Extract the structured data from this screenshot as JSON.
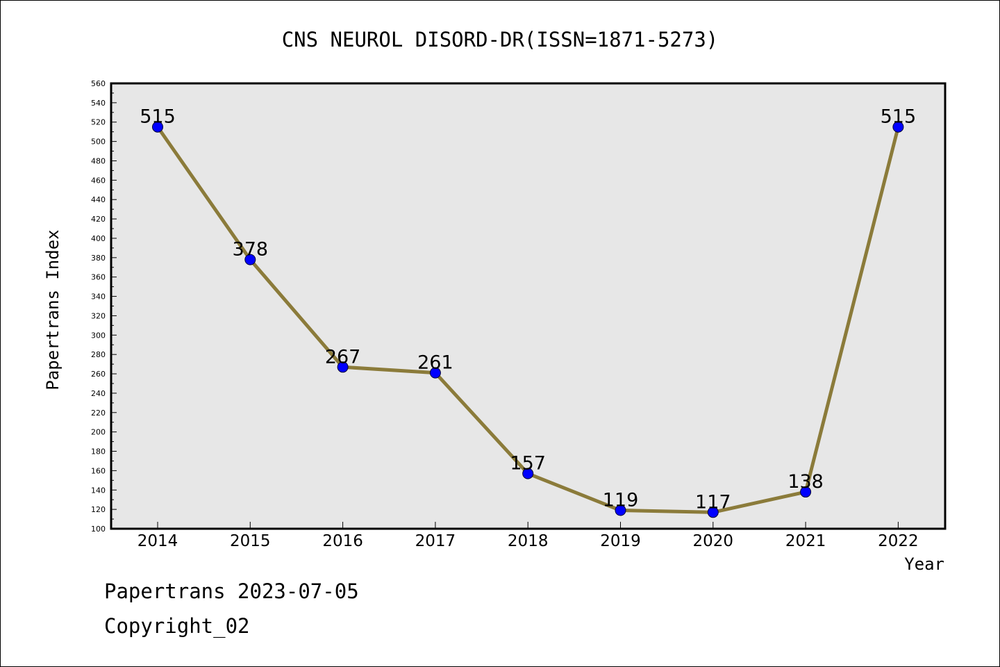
{
  "chart_data": {
    "type": "line",
    "title": "CNS NEUROL DISORD-DR(ISSN=1871-5273)",
    "xlabel": "Year",
    "ylabel": "Papertrans Index",
    "categories": [
      "2014",
      "2015",
      "2016",
      "2017",
      "2018",
      "2019",
      "2020",
      "2021",
      "2022"
    ],
    "series": [
      {
        "values": [
          515,
          378,
          267,
          261,
          157,
          119,
          117,
          138,
          515
        ],
        "line_color": "#8B7B3A",
        "marker_color": "#0000FF"
      }
    ],
    "data_labels": [
      "515",
      "378",
      "267",
      "261",
      "157",
      "119",
      "117",
      "138",
      "515"
    ],
    "ylim": [
      100,
      560
    ],
    "y_ticks": [
      "100",
      "120",
      "140",
      "160",
      "180",
      "200",
      "220",
      "240",
      "260",
      "280",
      "300",
      "320",
      "340",
      "360",
      "380",
      "400",
      "420",
      "440",
      "460",
      "480",
      "500",
      "520",
      "540",
      "560"
    ],
    "plot_background": "#E7E7E7",
    "grid": false,
    "legend": "none"
  },
  "footer": {
    "date_text": "Papertrans 2023-07-05",
    "copyright_text": "Copyright_02"
  }
}
